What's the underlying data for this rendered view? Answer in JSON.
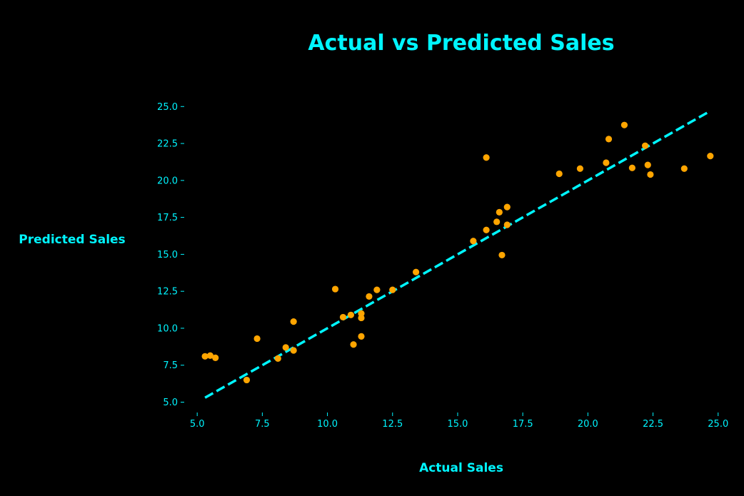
{
  "chart_data": {
    "type": "scatter",
    "title": "Actual vs Predicted Sales",
    "xlabel": "Actual Sales",
    "ylabel": "Predicted Sales",
    "xlim": [
      4.2,
      25.5
    ],
    "ylim": [
      4.3,
      26.8
    ],
    "xticks": [
      "5.0",
      "7.5",
      "10.0",
      "12.5",
      "15.0",
      "17.5",
      "20.0",
      "22.5",
      "25.0"
    ],
    "yticks": [
      "5.0",
      "7.5",
      "10.0",
      "12.5",
      "15.0",
      "17.5",
      "20.0",
      "22.5",
      "25.0"
    ],
    "grid": false,
    "points": [
      [
        5.3,
        8.1
      ],
      [
        5.5,
        8.15
      ],
      [
        5.7,
        8.0
      ],
      [
        6.9,
        6.5
      ],
      [
        7.3,
        9.3
      ],
      [
        8.1,
        7.95
      ],
      [
        8.4,
        8.7
      ],
      [
        8.7,
        8.5
      ],
      [
        8.7,
        10.45
      ],
      [
        10.3,
        12.65
      ],
      [
        10.6,
        10.75
      ],
      [
        10.9,
        10.9
      ],
      [
        11.0,
        8.9
      ],
      [
        11.3,
        11.0
      ],
      [
        11.3,
        10.7
      ],
      [
        11.3,
        9.45
      ],
      [
        11.6,
        12.15
      ],
      [
        11.9,
        12.6
      ],
      [
        12.5,
        12.6
      ],
      [
        13.4,
        13.8
      ],
      [
        15.6,
        15.9
      ],
      [
        16.1,
        16.65
      ],
      [
        16.1,
        21.55
      ],
      [
        16.5,
        17.2
      ],
      [
        16.6,
        17.85
      ],
      [
        16.7,
        14.95
      ],
      [
        16.9,
        17.0
      ],
      [
        16.9,
        18.2
      ],
      [
        18.9,
        20.45
      ],
      [
        19.7,
        20.8
      ],
      [
        20.7,
        21.2
      ],
      [
        20.8,
        22.8
      ],
      [
        21.4,
        23.75
      ],
      [
        21.7,
        20.85
      ],
      [
        22.2,
        22.35
      ],
      [
        22.3,
        21.05
      ],
      [
        22.4,
        20.4
      ],
      [
        23.7,
        20.8
      ],
      [
        24.7,
        21.65
      ]
    ],
    "reference_line": {
      "x": [
        5.3,
        24.7
      ],
      "y": [
        5.3,
        24.7
      ],
      "style": "dashed"
    },
    "colors": {
      "background": "#000000",
      "text": "#00f5ff",
      "points": "#ffa500",
      "line": "#00f5ff"
    }
  }
}
